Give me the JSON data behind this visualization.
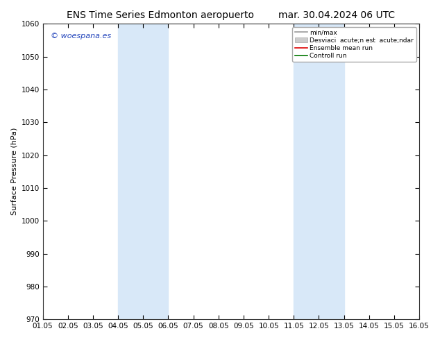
{
  "title_left": "ENS Time Series Edmonton aeropuerto",
  "title_right": "mar. 30.04.2024 06 UTC",
  "ylabel": "Surface Pressure (hPa)",
  "ylim": [
    970,
    1060
  ],
  "yticks": [
    970,
    980,
    990,
    1000,
    1010,
    1020,
    1030,
    1040,
    1050,
    1060
  ],
  "xtick_labels": [
    "01.05",
    "02.05",
    "03.05",
    "04.05",
    "05.05",
    "06.05",
    "07.05",
    "08.05",
    "09.05",
    "10.05",
    "11.05",
    "12.05",
    "13.05",
    "14.05",
    "15.05",
    "16.05"
  ],
  "background_color": "#ffffff",
  "plot_bg_color": "#ffffff",
  "shaded_columns": [
    {
      "xstart": 3,
      "xend": 5,
      "color": "#d8e8f8"
    },
    {
      "xstart": 10,
      "xend": 12,
      "color": "#d8e8f8"
    }
  ],
  "watermark": "© woespana.es",
  "watermark_color": "#2244bb",
  "legend_minmax_color": "#999999",
  "legend_std_color": "#cccccc",
  "legend_mean_color": "#dd0000",
  "legend_control_color": "#007700",
  "title_fontsize": 10,
  "axis_fontsize": 8,
  "tick_fontsize": 7.5
}
